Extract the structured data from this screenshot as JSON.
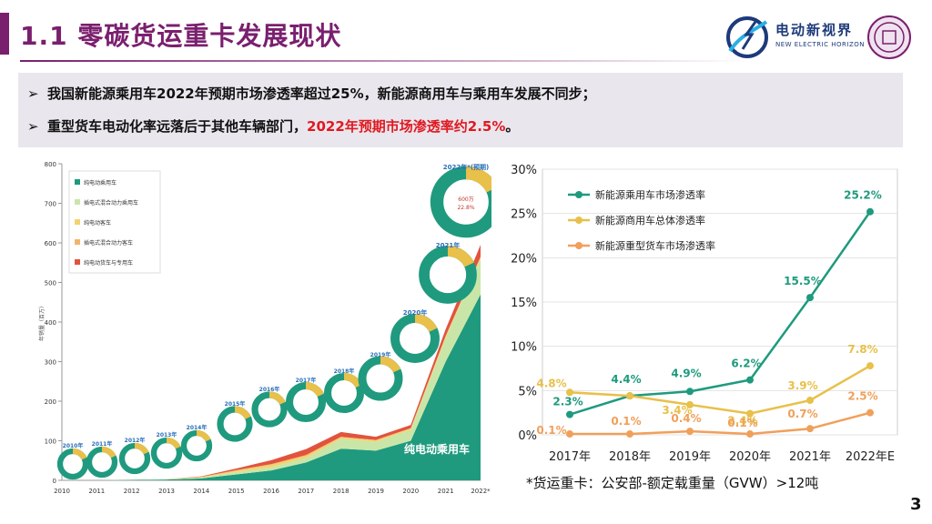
{
  "header": {
    "title": "1.1 零碳货运重卡发展现状",
    "logo_name": "电动新视界",
    "logo_sub": "NEW ELECTRIC HORIZON"
  },
  "bullets": [
    {
      "marker": "➢",
      "text": "我国新能源乘用车2022年预期市场渗透率超过25%，新能源商用车与乘用车发展不同步；",
      "highlight": ""
    },
    {
      "marker": "➢",
      "text": "重型货车电动化率远落后于其他车辆部门，",
      "highlight": "2022年预期市场渗透率约2.5%",
      "suffix": "。"
    }
  ],
  "colors": {
    "primary": "#7a1f6e",
    "teal": "#1f9a7e",
    "yellow": "#e8c04a",
    "orange": "#f0a05a",
    "red": "#e0191f"
  },
  "chart_data": [
    {
      "type": "area",
      "title": "",
      "ylabel": "年销量（百万）",
      "categories": [
        "2010",
        "2011",
        "2012",
        "2013",
        "2014",
        "2015",
        "2016",
        "2017",
        "2018",
        "2019",
        "2020",
        "2021",
        "2022*"
      ],
      "yticks": [
        "0",
        "100",
        "200",
        "300",
        "400",
        "500",
        "600",
        "700",
        "800"
      ],
      "ylim": [
        0,
        800
      ],
      "legend": [
        "纯电动乘用车",
        "插电式混合动力乘用车",
        "纯电动客车",
        "插电式混合动力客车",
        "纯电动货车与专用车"
      ],
      "series": [
        {
          "name": "纯电动乘用车",
          "values": [
            0,
            0,
            1,
            2,
            5,
            15,
            25,
            45,
            80,
            75,
            100,
            300,
            470
          ]
        },
        {
          "name": "插电式混合动力乘用车",
          "values": [
            0,
            0,
            1,
            1,
            2,
            6,
            8,
            12,
            25,
            22,
            28,
            60,
            90
          ]
        },
        {
          "name": "纯电动客车",
          "values": [
            0,
            0,
            0,
            0,
            1,
            3,
            6,
            5,
            4,
            4,
            3,
            4,
            4
          ]
        },
        {
          "name": "插电式混合动力客车",
          "values": [
            0,
            0,
            0,
            0,
            1,
            2,
            2,
            2,
            1,
            1,
            1,
            1,
            1
          ]
        },
        {
          "name": "纯电动货车与专用车",
          "values": [
            0,
            0,
            0,
            0,
            1,
            4,
            10,
            15,
            12,
            8,
            8,
            17,
            30
          ]
        }
      ],
      "area_label": "纯电动乘用车",
      "donuts": [
        {
          "year": "2010年",
          "lines": [
            "",
            ""
          ]
        },
        {
          "year": "2011年",
          "lines": [
            "",
            ""
          ]
        },
        {
          "year": "2012年",
          "lines": [
            "",
            ""
          ]
        },
        {
          "year": "2013年",
          "lines": [
            "",
            ""
          ]
        },
        {
          "year": "2014年",
          "lines": [
            "",
            ""
          ]
        },
        {
          "year": "2015年",
          "lines": [
            "",
            ""
          ]
        },
        {
          "year": "2016年",
          "lines": [
            "",
            ""
          ]
        },
        {
          "year": "2017年",
          "lines": [
            "",
            ""
          ]
        },
        {
          "year": "2018年",
          "lines": [
            "",
            ""
          ]
        },
        {
          "year": "2019年",
          "lines": [
            "",
            ""
          ]
        },
        {
          "year": "2020年",
          "lines": [
            "",
            ""
          ]
        },
        {
          "year": "2021年",
          "lines": [
            "",
            ""
          ]
        },
        {
          "year": "2022年*(预期)",
          "lines": [
            "600万",
            "22.8%"
          ]
        }
      ]
    },
    {
      "type": "line",
      "title": "",
      "xlabel": "",
      "ylabel": "",
      "categories": [
        "2017年",
        "2018年",
        "2019年",
        "2020年",
        "2021年",
        "2022年E"
      ],
      "yticks": [
        "0%",
        "5%",
        "10%",
        "15%",
        "20%",
        "25%",
        "30%"
      ],
      "ylim": [
        0,
        30
      ],
      "legend_position": "top-left",
      "series": [
        {
          "name": "新能源乘用车市场渗透率",
          "color": "#1f9a7e",
          "values": [
            2.3,
            4.4,
            4.9,
            6.2,
            15.5,
            25.2
          ],
          "labels": [
            "2.3%",
            "4.4%",
            "4.9%",
            "6.2%",
            "15.5%",
            "25.2%"
          ]
        },
        {
          "name": "新能源商用车总体渗透率",
          "color": "#e8c04a",
          "values": [
            4.8,
            4.4,
            3.4,
            2.4,
            3.9,
            7.8
          ],
          "labels": [
            "4.8%",
            "",
            "3.4%",
            "2.4%",
            "3.9%",
            "7.8%"
          ]
        },
        {
          "name": "新能源重型货车市场渗透率",
          "color": "#f0a05a",
          "values": [
            0.1,
            0.1,
            0.4,
            0.1,
            0.7,
            2.5
          ],
          "labels": [
            "0.1%",
            "0.1%",
            "0.4%",
            "0.1%",
            "0.7%",
            "2.5%"
          ]
        }
      ]
    }
  ],
  "footnote": "*货运重卡：公安部-额定载重量（GVW）>12吨",
  "page_number": "3"
}
